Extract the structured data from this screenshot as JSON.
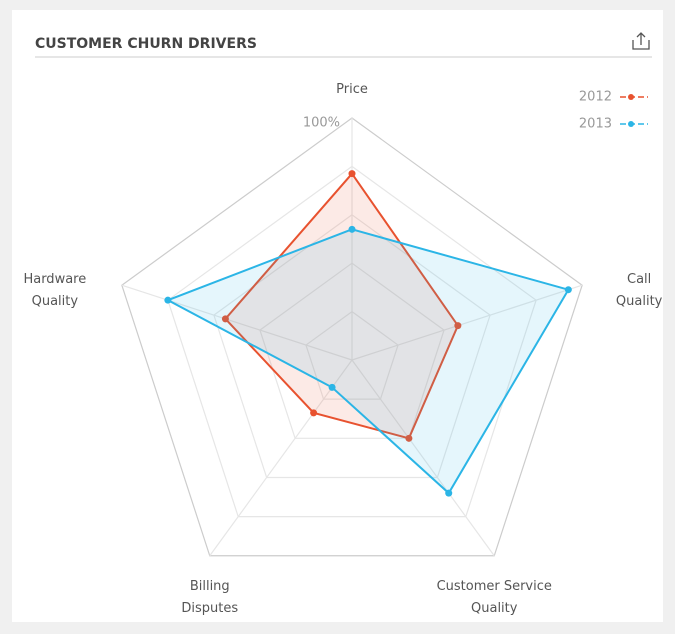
{
  "chart_data": {
    "type": "radar",
    "title": "CUSTOMER CHURN DRIVERS",
    "categories": [
      "Price",
      "Call Quality",
      "Customer Service Quality",
      "Billing Disputes",
      "Hardware Quality"
    ],
    "series": [
      {
        "name": "2012",
        "color": "#e8522f",
        "values": [
          77,
          46,
          40,
          27,
          55
        ]
      },
      {
        "name": "2013",
        "color": "#2bb5e6",
        "values": [
          54,
          94,
          68,
          14,
          80
        ]
      }
    ],
    "rlim": [
      0,
      100
    ],
    "rticks": [
      20,
      40,
      60,
      80,
      {
        "value": 100,
        "label": "100%"
      }
    ],
    "grid": true,
    "legend": "top-right"
  }
}
